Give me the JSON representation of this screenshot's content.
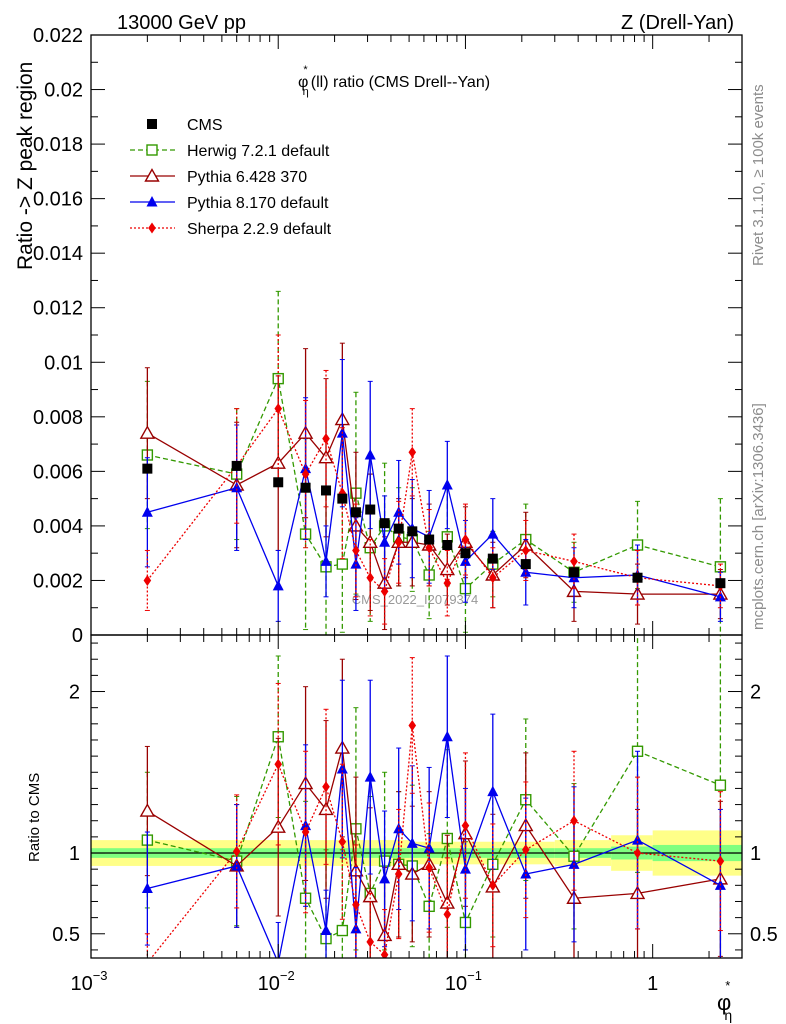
{
  "header": {
    "left": "13000 GeV pp",
    "right": "Z (Drell-Yan)"
  },
  "side_labels": {
    "rivet": "Rivet 3.1.10, ≥ 100k events",
    "mcplots": "mcplots.cern.ch [arXiv:1306.3436]"
  },
  "watermark": "CMS_2022_I2079374",
  "chart_data": [
    {
      "type": "scatter",
      "title_parts": {
        "phi": "φ",
        "star": "*",
        "sub": "η",
        "rest": "(ll) ratio (CMS Drell--Yan)"
      },
      "ylabel": "Ratio -> Z peak region",
      "xlabel_parts": {
        "phi": "φ",
        "star": "*",
        "sub": "η"
      },
      "xscale": "log",
      "xlim": [
        0.001,
        3.0
      ],
      "ylim": [
        0,
        0.022
      ],
      "x_tick_labels": [
        "10",
        "−3",
        "10",
        "−2",
        "10",
        "−1",
        "1"
      ],
      "y_ticks": [
        0,
        0.002,
        0.004,
        0.006,
        0.008,
        0.01,
        0.012,
        0.014,
        0.016,
        0.018,
        0.02,
        0.022
      ],
      "y_tick_labels": [
        "0",
        "0.002",
        "0.004",
        "0.006",
        "0.008",
        "0.01",
        "0.012",
        "0.014",
        "0.016",
        "0.018",
        "0.02",
        "0.022"
      ],
      "legend_position": "top-left",
      "x": [
        0.002,
        0.006,
        0.01,
        0.014,
        0.018,
        0.022,
        0.026,
        0.031,
        0.037,
        0.044,
        0.052,
        0.064,
        0.08,
        0.1,
        0.14,
        0.21,
        0.38,
        0.83,
        2.3
      ],
      "series": [
        {
          "name": "CMS",
          "color": "#000000",
          "marker": "square-filled",
          "line": "none",
          "values": [
            0.0061,
            0.0062,
            0.0056,
            0.0054,
            0.0053,
            0.005,
            0.0045,
            0.0046,
            0.0041,
            0.0039,
            0.0038,
            0.0035,
            0.0033,
            0.003,
            0.0028,
            0.0026,
            0.0023,
            0.0021,
            0.0019
          ],
          "err": [
            0,
            0,
            0,
            0,
            0,
            0,
            0,
            0,
            0,
            0,
            0,
            0,
            0,
            0,
            0,
            0,
            0,
            0,
            0
          ]
        },
        {
          "name": "Herwig 7.2.1 default",
          "color": "#339900",
          "marker": "square-open",
          "line": "dashed",
          "values": [
            0.0066,
            0.0059,
            0.0094,
            0.0037,
            0.0025,
            0.0026,
            0.0052,
            0.0032,
            0.004,
            0.0036,
            0.0035,
            0.0022,
            0.0036,
            0.0017,
            0.0026,
            0.0035,
            0.0023,
            0.0033,
            0.0025
          ],
          "err": [
            0.0027,
            0.0024,
            0.0032,
            0.0035,
            0.0029,
            0.0025,
            0.0037,
            0.0027,
            0.0023,
            0.0018,
            0.0019,
            0.0016,
            0.0018,
            0.0016,
            0.0012,
            0.0013,
            0.0011,
            0.0016,
            0.0025
          ]
        },
        {
          "name": "Pythia 6.428 370",
          "color": "#990000",
          "marker": "triangle-open",
          "line": "solid",
          "values": [
            0.0074,
            0.0055,
            0.0063,
            0.0074,
            0.0065,
            0.0079,
            0.004,
            0.0034,
            0.0019,
            0.0034,
            0.0034,
            0.0033,
            0.0024,
            0.0034,
            0.0022,
            0.0033,
            0.0016,
            0.0015,
            0.0015
          ],
          "err": [
            0.0024,
            0.0023,
            0.0032,
            0.0031,
            0.0029,
            0.0028,
            0.0027,
            0.0025,
            0.0017,
            0.0016,
            0.0016,
            0.0015,
            0.0013,
            0.0013,
            0.0012,
            0.0012,
            0.0011,
            0.0011,
            0.0009
          ]
        },
        {
          "name": "Pythia 8.170 default",
          "color": "#0000ee",
          "marker": "triangle-filled",
          "line": "solid",
          "values": [
            0.0045,
            0.0054,
            0.0018,
            0.0061,
            0.0027,
            0.0074,
            0.0026,
            0.0066,
            0.0034,
            0.0045,
            0.0039,
            0.0036,
            0.0055,
            0.0027,
            0.0037,
            0.0023,
            0.0021,
            0.0022,
            0.0014
          ],
          "err": [
            0.002,
            0.0023,
            0.0013,
            0.0026,
            0.0013,
            0.0027,
            0.0017,
            0.0027,
            0.0017,
            0.0019,
            0.0018,
            0.0017,
            0.0016,
            0.0015,
            0.0013,
            0.0012,
            0.0011,
            0.0011,
            0.0009
          ]
        },
        {
          "name": "Sherpa 2.2.9 default",
          "color": "#ee0000",
          "marker": "diamond-filled",
          "line": "dotted",
          "values": [
            0.002,
            0.0062,
            0.0083,
            0.0059,
            0.0072,
            0.0052,
            0.0031,
            0.0021,
            0.0016,
            0.0034,
            0.0067,
            0.0032,
            0.0019,
            0.0035,
            0.0021,
            0.0031,
            0.0027,
            0.0021,
            0.0018
          ],
          "err": [
            0.0011,
            0.0021,
            0.0027,
            0.0027,
            0.0025,
            0.0024,
            0.0017,
            0.0014,
            0.0012,
            0.0015,
            0.0016,
            0.0014,
            0.0012,
            0.0013,
            0.0011,
            0.0011,
            0.001,
            0.001,
            0.0008
          ]
        }
      ]
    },
    {
      "type": "scatter",
      "ylabel": "Ratio to CMS",
      "xscale": "log",
      "xlim": [
        0.001,
        3.0
      ],
      "ylim": [
        0.35,
        2.35
      ],
      "y_ticks": [
        0.5,
        1,
        2
      ],
      "y_tick_labels": [
        "0.5",
        "1",
        "2"
      ],
      "uncertainty_bands": {
        "inner_color": "#7fff7f",
        "outer_color": "#ffff88",
        "x_edges": [
          0.001,
          0.05,
          0.1,
          0.3,
          0.6,
          1.0,
          3.0
        ],
        "inner_half_width": [
          0.03,
          0.03,
          0.03,
          0.03,
          0.04,
          0.05
        ],
        "outer_half_width": [
          0.08,
          0.07,
          0.07,
          0.08,
          0.11,
          0.14
        ]
      },
      "x": [
        0.002,
        0.006,
        0.01,
        0.014,
        0.018,
        0.022,
        0.026,
        0.031,
        0.037,
        0.044,
        0.052,
        0.064,
        0.08,
        0.1,
        0.14,
        0.21,
        0.38,
        0.83,
        2.3
      ],
      "series": [
        {
          "name": "Herwig 7.2.1 default",
          "color": "#339900",
          "marker": "square-open",
          "line": "dashed",
          "values": [
            1.08,
            0.95,
            1.72,
            0.72,
            0.47,
            0.52,
            1.15,
            0.75,
            0.95,
            0.93,
            0.92,
            0.67,
            1.09,
            0.57,
            0.93,
            1.33,
            0.98,
            1.63,
            1.42
          ],
          "err": [
            0.42,
            0.4,
            0.5,
            0.6,
            0.55,
            0.5,
            0.75,
            0.6,
            0.55,
            0.45,
            0.5,
            0.45,
            0.55,
            0.5,
            0.45,
            0.5,
            0.45,
            0.75,
            1.25
          ]
        },
        {
          "name": "Pythia 6.428 370",
          "color": "#990000",
          "marker": "triangle-open",
          "line": "solid",
          "values": [
            1.26,
            0.92,
            1.16,
            1.43,
            1.27,
            1.65,
            0.89,
            0.73,
            0.49,
            0.93,
            0.87,
            0.93,
            0.69,
            1.12,
            0.79,
            1.17,
            0.72,
            0.75,
            0.84
          ],
          "err": [
            0.4,
            0.38,
            0.55,
            0.6,
            0.55,
            0.55,
            0.58,
            0.55,
            0.42,
            0.45,
            0.42,
            0.45,
            0.42,
            0.45,
            0.45,
            0.45,
            0.47,
            0.52,
            0.48
          ]
        },
        {
          "name": "Pythia 8.170 default",
          "color": "#0000ee",
          "marker": "triangle-filled",
          "line": "solid",
          "values": [
            0.78,
            0.92,
            0.32,
            1.17,
            0.52,
            1.52,
            0.53,
            1.47,
            0.84,
            1.15,
            1.06,
            1.03,
            1.72,
            0.9,
            1.38,
            0.87,
            0.93,
            1.08,
            0.8
          ],
          "err": [
            0.35,
            0.38,
            0.25,
            0.5,
            0.25,
            0.55,
            0.38,
            0.6,
            0.42,
            0.5,
            0.48,
            0.5,
            0.5,
            0.5,
            0.48,
            0.47,
            0.48,
            0.55,
            0.47
          ]
        },
        {
          "name": "Sherpa 2.2.9 default",
          "color": "#ee0000",
          "marker": "diamond-filled",
          "line": "dotted",
          "values": [
            0.32,
            1.01,
            1.55,
            1.13,
            1.41,
            1.07,
            0.68,
            0.45,
            0.37,
            0.87,
            1.79,
            0.91,
            0.62,
            1.17,
            0.8,
            1.02,
            1.2,
            1.0,
            0.95
          ],
          "err": [
            0.18,
            0.35,
            0.5,
            0.5,
            0.48,
            0.48,
            0.37,
            0.3,
            0.28,
            0.4,
            0.42,
            0.4,
            0.35,
            0.45,
            0.38,
            0.42,
            0.43,
            0.47,
            0.43
          ]
        }
      ]
    }
  ]
}
